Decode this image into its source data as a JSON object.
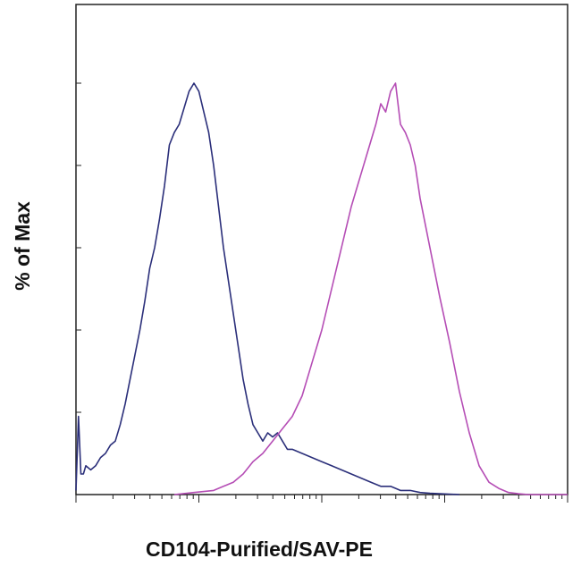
{
  "chart_data": {
    "type": "line",
    "title": "",
    "xlabel": "CD104-Purified/SAV-PE",
    "ylabel": "% of Max",
    "x_scale": "log",
    "xlim": [
      0,
      1
    ],
    "ylim": [
      0,
      100
    ],
    "grid": false,
    "legend": "none",
    "series": [
      {
        "color": "#2b2f7a",
        "x": [
          0.0,
          0.005,
          0.01,
          0.015,
          0.02,
          0.03,
          0.04,
          0.05,
          0.06,
          0.07,
          0.08,
          0.09,
          0.1,
          0.11,
          0.12,
          0.13,
          0.14,
          0.15,
          0.16,
          0.17,
          0.18,
          0.19,
          0.2,
          0.21,
          0.22,
          0.23,
          0.24,
          0.25,
          0.26,
          0.27,
          0.28,
          0.29,
          0.3,
          0.31,
          0.32,
          0.33,
          0.34,
          0.35,
          0.36,
          0.37,
          0.38,
          0.39,
          0.4,
          0.41,
          0.42,
          0.43,
          0.44,
          0.46,
          0.48,
          0.5,
          0.52,
          0.54,
          0.56,
          0.58,
          0.6,
          0.62,
          0.64,
          0.66,
          0.68,
          0.7,
          0.72,
          0.74,
          0.76,
          0.78
        ],
        "y": [
          1,
          19,
          5,
          5,
          7,
          6,
          7,
          9,
          10,
          12,
          13,
          17,
          22,
          28,
          34,
          40,
          47,
          55,
          60,
          67,
          75,
          85,
          88,
          90,
          94,
          98,
          100,
          98,
          93,
          88,
          80,
          70,
          60,
          52,
          44,
          36,
          28,
          22,
          17,
          15,
          13,
          15,
          14,
          15,
          13,
          11,
          11,
          10,
          9,
          8,
          7,
          6,
          5,
          4,
          3,
          2,
          2,
          1,
          1,
          0.5,
          0.3,
          0.2,
          0.1,
          0
        ]
      },
      {
        "color": "#b54db5",
        "x": [
          0.2,
          0.24,
          0.28,
          0.3,
          0.32,
          0.34,
          0.36,
          0.38,
          0.4,
          0.42,
          0.44,
          0.46,
          0.48,
          0.5,
          0.52,
          0.54,
          0.56,
          0.58,
          0.6,
          0.61,
          0.62,
          0.63,
          0.64,
          0.65,
          0.66,
          0.67,
          0.68,
          0.69,
          0.7,
          0.72,
          0.74,
          0.76,
          0.78,
          0.8,
          0.82,
          0.84,
          0.86,
          0.88,
          0.9,
          0.92,
          0.94,
          0.96,
          0.98,
          1.0
        ],
        "y": [
          0,
          0.5,
          1,
          2,
          3,
          5,
          8,
          10,
          13,
          16,
          19,
          24,
          32,
          40,
          50,
          60,
          70,
          78,
          86,
          90,
          95,
          93,
          98,
          100,
          90,
          88,
          85,
          80,
          72,
          60,
          48,
          37,
          25,
          15,
          7,
          3,
          1.5,
          0.5,
          0.2,
          0,
          0,
          0,
          0,
          0
        ]
      }
    ]
  }
}
